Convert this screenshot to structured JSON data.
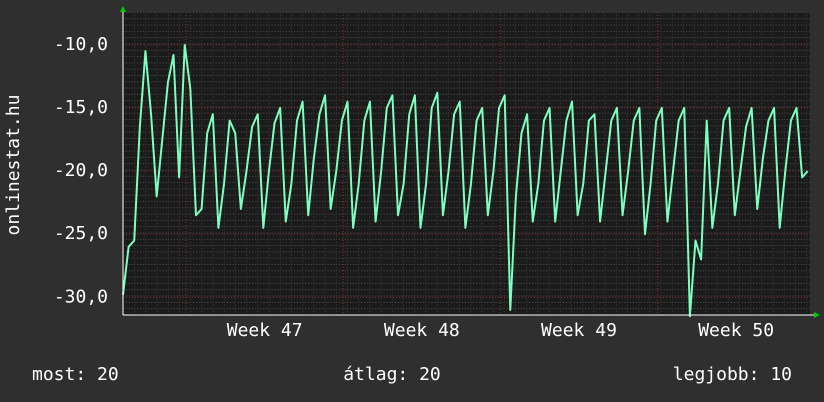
{
  "chart_data": {
    "type": "line",
    "ylabel": "onlinestat.hu",
    "color": "#7fffbf",
    "grid": true,
    "ylim": [
      -31.4,
      -7.4
    ],
    "yticks": [
      {
        "value": -10,
        "label": "-10,0"
      },
      {
        "value": -15,
        "label": "-15,0"
      },
      {
        "value": -20,
        "label": "-20,0"
      },
      {
        "value": -25,
        "label": "-25,0"
      },
      {
        "value": -30,
        "label": "-30,0"
      }
    ],
    "xlim": [
      0,
      30.6
    ],
    "xgrid": [
      2.81,
      9.81,
      16.81,
      23.81
    ],
    "xticks": [
      {
        "value": 6.31,
        "label": "Week 47"
      },
      {
        "value": 13.31,
        "label": "Week 48"
      },
      {
        "value": 20.31,
        "label": "Week 49"
      },
      {
        "value": 27.31,
        "label": "Week 50"
      }
    ],
    "x": [
      0,
      0.25,
      0.5,
      0.75,
      1,
      1.25,
      1.5,
      1.75,
      2,
      2.25,
      2.5,
      2.75,
      3,
      3.25,
      3.5,
      3.75,
      4,
      4.25,
      4.5,
      4.75,
      5,
      5.25,
      5.5,
      5.75,
      6,
      6.25,
      6.5,
      6.75,
      7,
      7.25,
      7.5,
      7.75,
      8,
      8.25,
      8.5,
      8.75,
      9,
      9.25,
      9.5,
      9.75,
      10,
      10.25,
      10.5,
      10.75,
      11,
      11.25,
      11.5,
      11.75,
      12,
      12.25,
      12.5,
      12.75,
      13,
      13.25,
      13.5,
      13.75,
      14,
      14.25,
      14.5,
      14.75,
      15,
      15.25,
      15.5,
      15.75,
      16,
      16.25,
      16.5,
      16.75,
      17,
      17.25,
      17.5,
      17.75,
      18,
      18.25,
      18.5,
      18.75,
      19,
      19.25,
      19.5,
      19.75,
      20,
      20.25,
      20.5,
      20.75,
      21,
      21.25,
      21.5,
      21.75,
      22,
      22.25,
      22.5,
      22.75,
      23,
      23.25,
      23.5,
      23.75,
      24,
      24.25,
      24.5,
      24.75,
      25,
      25.25,
      25.5,
      25.75,
      26,
      26.25,
      26.5,
      26.75,
      27,
      27.25,
      27.5,
      27.75,
      28,
      28.25,
      28.5,
      28.75,
      29,
      29.25,
      29.5,
      29.75,
      30,
      30.25,
      30.5
    ],
    "values": [
      -29.8,
      -26,
      -25.5,
      -16.5,
      -10.5,
      -15.5,
      -22,
      -17.5,
      -13,
      -10.8,
      -20.5,
      -10,
      -13.5,
      -23.5,
      -23,
      -17,
      -15.5,
      -24.5,
      -21,
      -16,
      -17,
      -23,
      -20,
      -16.5,
      -15.5,
      -24.5,
      -20,
      -16.2,
      -15,
      -24,
      -21,
      -16,
      -14.5,
      -23.5,
      -19,
      -15.5,
      -14,
      -23,
      -20,
      -16,
      -14.5,
      -24.5,
      -21,
      -16,
      -14.5,
      -24,
      -20,
      -15,
      -14,
      -23.5,
      -21,
      -15.5,
      -14,
      -24.5,
      -21,
      -15,
      -13.8,
      -23.5,
      -20,
      -15.5,
      -14.5,
      -24.5,
      -21,
      -16,
      -15,
      -23.5,
      -20,
      -15,
      -14,
      -31,
      -22,
      -17,
      -15.5,
      -24,
      -21,
      -16,
      -15,
      -24,
      -20,
      -16,
      -14.5,
      -23.5,
      -21,
      -16,
      -15.5,
      -24,
      -20,
      -16,
      -15,
      -23.5,
      -20,
      -16,
      -15,
      -25,
      -21,
      -16,
      -15,
      -24,
      -20,
      -16,
      -15,
      -31.5,
      -25.5,
      -27,
      -16,
      -24.5,
      -21,
      -16,
      -15,
      -23.5,
      -20,
      -16.5,
      -15,
      -23,
      -19,
      -16,
      -15,
      -24.5,
      -20,
      -16,
      -15,
      -20.5,
      -20
    ],
    "footer": [
      "most: 20",
      "átlag: 20",
      "legjobb: 10"
    ]
  }
}
